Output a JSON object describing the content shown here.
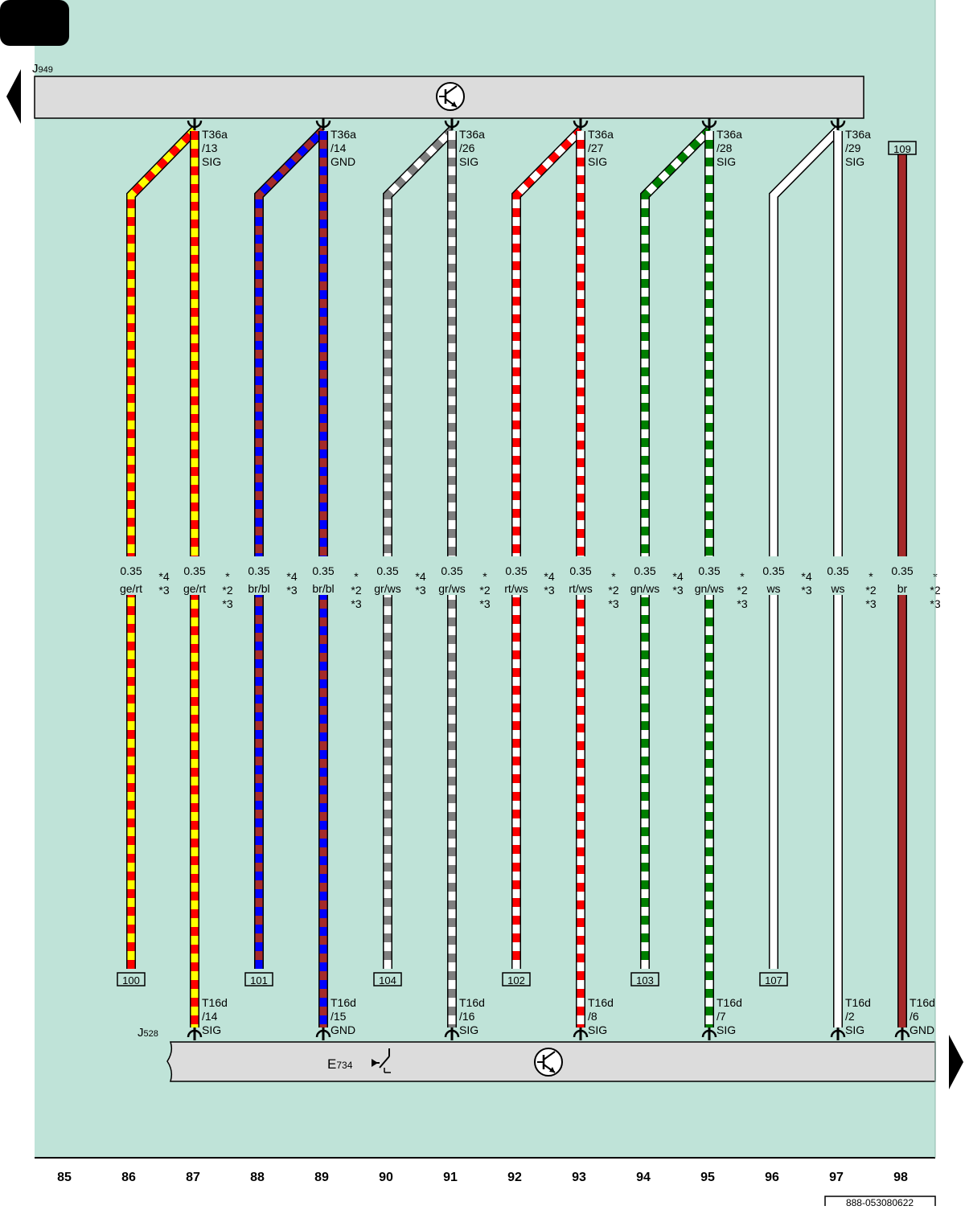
{
  "page_tab": "",
  "colors": {
    "background": "#bfe3d8",
    "module_fill": "#dcdcdc",
    "ge": "#ffff00",
    "rt": "#ff0000",
    "br": "#a52a2a",
    "bl": "#0000ff",
    "gr": "#808080",
    "ws": "#ffffff",
    "gn": "#008000"
  },
  "top_module": {
    "label": "J",
    "sub": "949",
    "icon": "transistor-symbol-icon"
  },
  "bottom_module": {
    "label": "J",
    "sub": "528",
    "component": "E",
    "component_sub": "734",
    "icons": [
      "sensor-symbol-icon",
      "transistor-symbol-icon"
    ]
  },
  "nav": {
    "left": "previous-page-arrow-icon",
    "right": "next-page-arrow-icon"
  },
  "top_connectors": [
    {
      "l1": "T36a",
      "l2": "/13",
      "l3": "SIG"
    },
    {
      "l1": "T36a",
      "l2": "/14",
      "l3": "GND"
    },
    {
      "l1": "T36a",
      "l2": "/26",
      "l3": "SIG"
    },
    {
      "l1": "T36a",
      "l2": "/27",
      "l3": "SIG"
    },
    {
      "l1": "T36a",
      "l2": "/28",
      "l3": "SIG"
    },
    {
      "l1": "T36a",
      "l2": "/29",
      "l3": "SIG"
    }
  ],
  "bottom_connectors": [
    {
      "l1": "T16d",
      "l2": "/14",
      "l3": "SIG"
    },
    {
      "l1": "T16d",
      "l2": "/15",
      "l3": "GND"
    },
    {
      "l1": "T16d",
      "l2": "/16",
      "l3": "SIG"
    },
    {
      "l1": "T16d",
      "l2": "/8",
      "l3": "SIG"
    },
    {
      "l1": "T16d",
      "l2": "/7",
      "l3": "SIG"
    },
    {
      "l1": "T16d",
      "l2": "/2",
      "l3": "SIG"
    },
    {
      "l1": "T16d",
      "l2": "/6",
      "l3": "GND"
    }
  ],
  "wires": [
    {
      "size": "0.35",
      "color": "ge/rt",
      "notes": [
        "*4",
        "*3"
      ]
    },
    {
      "size": "0.35",
      "color": "ge/rt",
      "notes": [
        "*",
        "*2",
        "*3"
      ]
    },
    {
      "size": "0.35",
      "color": "br/bl",
      "notes": [
        "*4",
        "*3"
      ]
    },
    {
      "size": "0.35",
      "color": "br/bl",
      "notes": [
        "*",
        "*2",
        "*3"
      ]
    },
    {
      "size": "0.35",
      "color": "gr/ws",
      "notes": [
        "*4",
        "*3"
      ]
    },
    {
      "size": "0.35",
      "color": "gr/ws",
      "notes": [
        "*",
        "*2",
        "*3"
      ]
    },
    {
      "size": "0.35",
      "color": "rt/ws",
      "notes": [
        "*4",
        "*3"
      ]
    },
    {
      "size": "0.35",
      "color": "rt/ws",
      "notes": [
        "*",
        "*2",
        "*3"
      ]
    },
    {
      "size": "0.35",
      "color": "gn/ws",
      "notes": [
        "*4",
        "*3"
      ]
    },
    {
      "size": "0.35",
      "color": "gn/ws",
      "notes": [
        "*",
        "*2",
        "*3"
      ]
    },
    {
      "size": "0.35",
      "color": "ws",
      "notes": [
        "*4",
        "*3"
      ]
    },
    {
      "size": "0.35",
      "color": "ws",
      "notes": [
        "*",
        "*2",
        "*3"
      ]
    },
    {
      "size": "0.35",
      "color": "br",
      "notes": [
        "*",
        "*2",
        "*3"
      ]
    }
  ],
  "refs": [
    "100",
    "101",
    "104",
    "102",
    "103",
    "107",
    "109"
  ],
  "columns": [
    "85",
    "86",
    "87",
    "88",
    "89",
    "90",
    "91",
    "92",
    "93",
    "94",
    "95",
    "96",
    "97",
    "98"
  ],
  "doc_number": "888-053080622"
}
